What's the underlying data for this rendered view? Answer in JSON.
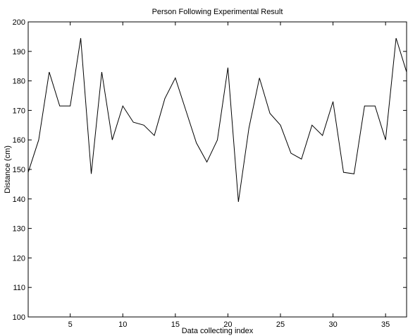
{
  "chart_data": {
    "type": "line",
    "title": "Person Following Experimental Result",
    "xlabel": "Data collecting index",
    "ylabel": "Distance (cm)",
    "xlim": [
      1,
      37
    ],
    "ylim": [
      100,
      200
    ],
    "x_ticks": [
      5,
      10,
      15,
      20,
      25,
      30,
      35
    ],
    "y_ticks": [
      100,
      110,
      120,
      130,
      140,
      150,
      160,
      170,
      180,
      190,
      200
    ],
    "grid": false,
    "series": [
      {
        "x": [
          1,
          2,
          3,
          4,
          5,
          6,
          7,
          8,
          9,
          10,
          11,
          12,
          13,
          14,
          15,
          16,
          17,
          18,
          19,
          20,
          21,
          22,
          23,
          24,
          25,
          26,
          27,
          28,
          29,
          30,
          31,
          32,
          33,
          34,
          35,
          36,
          37
        ],
        "values": [
          149,
          160,
          183,
          171.5,
          171.5,
          194.5,
          148.5,
          183,
          160,
          171.5,
          166,
          165,
          161.5,
          174,
          181,
          170,
          159,
          152.5,
          160,
          184.5,
          139,
          164,
          181,
          169,
          165,
          155.5,
          153.5,
          165,
          161.5,
          173,
          149,
          148.5,
          171.5,
          171.5,
          160,
          194.5,
          183
        ]
      }
    ]
  }
}
